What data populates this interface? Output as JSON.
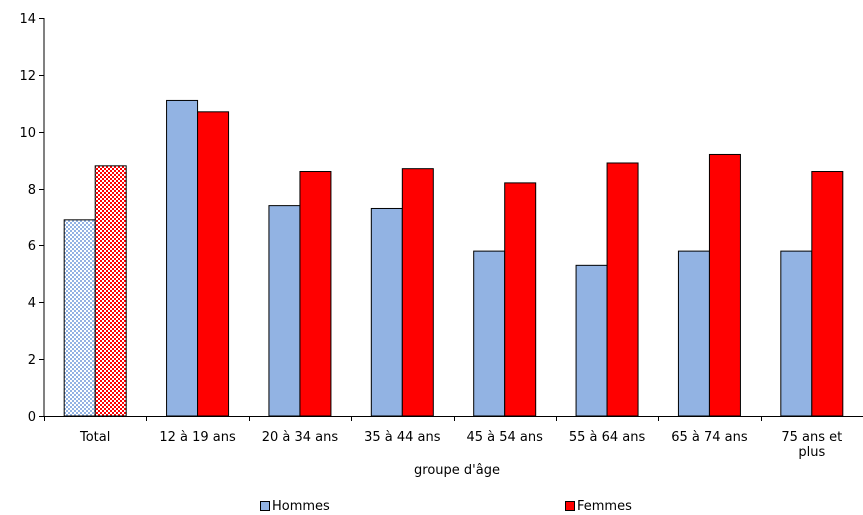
{
  "chart_data": {
    "type": "bar",
    "xlabel": "groupe d'âge",
    "ylabel": "",
    "ylim": [
      0,
      14
    ],
    "yticks": [
      "0",
      "2",
      "4",
      "6",
      "8",
      "10",
      "12",
      "14"
    ],
    "categories": [
      [
        "Total"
      ],
      [
        "12 à 19 ans"
      ],
      [
        "20 à 34 ans"
      ],
      [
        "35 à 44 ans"
      ],
      [
        "45 à 54 ans"
      ],
      [
        "55 à 64 ans"
      ],
      [
        "65 à 74 ans"
      ],
      [
        "75 ans et",
        "plus"
      ]
    ],
    "series": [
      {
        "name": "Hommes",
        "color": "#92b3e3",
        "values": [
          6.9,
          11.1,
          7.4,
          7.3,
          5.8,
          5.3,
          5.8,
          5.8
        ]
      },
      {
        "name": "Femmes",
        "color": "#ff0000",
        "values": [
          8.8,
          10.7,
          8.6,
          8.7,
          8.2,
          8.9,
          9.2,
          8.6
        ]
      }
    ],
    "first_category_pattern": "checkered",
    "grid": false,
    "legend": "bottom"
  }
}
